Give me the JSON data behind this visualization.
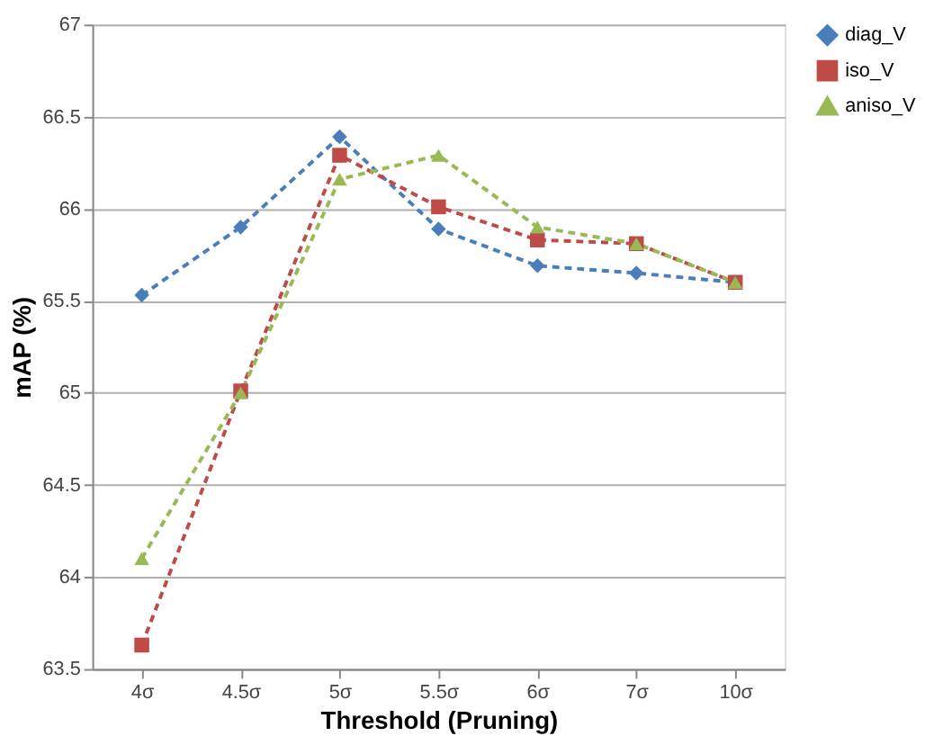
{
  "chart_data": {
    "type": "line",
    "xlabel": "Threshold (Pruning)",
    "ylabel": "mAP (%)",
    "categories": [
      "4σ",
      "4.5σ",
      "5σ",
      "5.5σ",
      "6σ",
      "7σ",
      "10σ"
    ],
    "series": [
      {
        "name": "diag_V",
        "color": "#4a7ebb",
        "marker": "diamond",
        "values": [
          65.53,
          65.9,
          66.39,
          65.89,
          65.69,
          65.65,
          65.6
        ]
      },
      {
        "name": "iso_V",
        "color": "#be4b48",
        "marker": "square",
        "values": [
          63.63,
          65.01,
          66.29,
          66.01,
          65.83,
          65.81,
          65.6
        ]
      },
      {
        "name": "aniso_V",
        "color": "#98b954",
        "marker": "triangle",
        "values": [
          64.1,
          65.0,
          66.16,
          66.29,
          65.9,
          65.81,
          65.6
        ]
      }
    ],
    "ylim": [
      63.5,
      67
    ],
    "yticks": [
      63.5,
      64,
      64.5,
      65,
      65.5,
      66,
      66.5,
      67
    ],
    "grid": "y",
    "legend": "right",
    "line_style": "dashed"
  }
}
